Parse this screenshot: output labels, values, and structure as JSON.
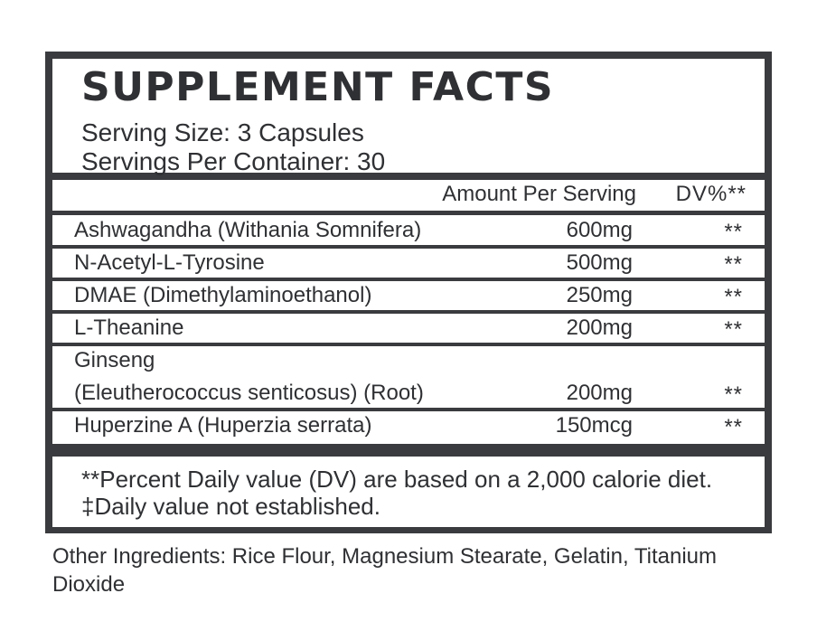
{
  "title": "SUPPLEMENT FACTS",
  "serving_size": "Serving Size: 3 Capsules",
  "servings_per_container": "Servings Per Container: 30",
  "columns": {
    "amount": "Amount Per Serving",
    "dv": "DV%**"
  },
  "ingredients": [
    {
      "name": "Ashwagandha (Withania Somnifera)",
      "amount": "600mg",
      "dv": "**"
    },
    {
      "name": "N-Acetyl-L-Tyrosine",
      "amount": "500mg",
      "dv": "**"
    },
    {
      "name": "DMAE (Dimethylaminoethanol)",
      "amount": "250mg",
      "dv": "**"
    },
    {
      "name": "L-Theanine",
      "amount": "200mg",
      "dv": "**"
    },
    {
      "name": "Ginseng",
      "name_line2": "(Eleutherococcus senticosus) (Root)",
      "amount": "200mg",
      "dv": "**"
    },
    {
      "name": "Huperzine A (Huperzia serrata)",
      "amount": "150mcg",
      "dv": "**"
    }
  ],
  "footnotes": [
    "**Percent Daily value (DV) are based on a 2,000 calorie diet.",
    "‡Daily value not established."
  ],
  "other_ingredients": "Other Ingredients: Rice Flour, Magnesium Stearate, Gelatin, Titanium Dioxide"
}
